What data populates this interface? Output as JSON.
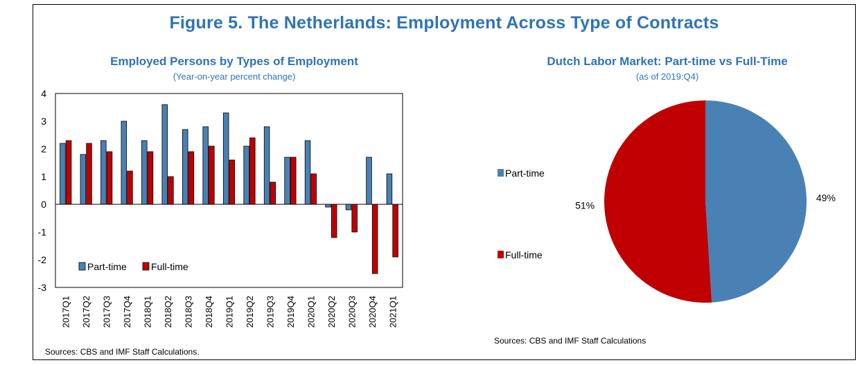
{
  "figure_title": "Figure 5. The Netherlands: Employment Across Type of Contracts",
  "left_panel": {
    "title": "Employed Persons by Types of Employment",
    "subtitle": "(Year-on-year percent change)",
    "source": "Sources: CBS and IMF Staff Calculations."
  },
  "right_panel": {
    "title": "Dutch Labor Market: Part-time vs Full-Time",
    "subtitle": "(as of 2019:Q4)",
    "source": "Sources: CBS and IMF Staff Calculations"
  },
  "colors": {
    "part_time": "#4a81b4",
    "full_time": "#c00000",
    "title": "#2e74b5"
  },
  "chart_data": [
    {
      "type": "bar",
      "title": "Employed Persons by Types of Employment",
      "subtitle": "(Year-on-year percent change)",
      "categories": [
        "2017Q1",
        "2017Q2",
        "2017Q3",
        "2017Q4",
        "2018Q1",
        "2018Q2",
        "2018Q3",
        "2018Q4",
        "2019Q1",
        "2019Q2",
        "2019Q3",
        "2019Q4",
        "2020Q1",
        "2020Q2",
        "2020Q3",
        "2020Q4",
        "2021Q1"
      ],
      "series": [
        {
          "name": "Part-time",
          "values": [
            2.2,
            1.8,
            2.3,
            3.0,
            2.3,
            3.6,
            2.7,
            2.8,
            3.3,
            2.1,
            2.8,
            1.7,
            2.3,
            -0.1,
            -0.2,
            1.7,
            1.1
          ]
        },
        {
          "name": "Full-time",
          "values": [
            2.3,
            2.2,
            1.9,
            1.2,
            1.9,
            1.0,
            1.9,
            2.1,
            1.6,
            2.4,
            0.8,
            1.7,
            1.1,
            -1.2,
            -1.0,
            -2.5,
            -1.9
          ]
        }
      ],
      "ylim": [
        -3,
        4
      ],
      "yticks": [
        -3,
        -2,
        -1,
        0,
        1,
        2,
        3,
        4
      ],
      "legend_position": "bottom-left"
    },
    {
      "type": "pie",
      "title": "Dutch Labor Market: Part-time vs Full-Time",
      "subtitle": "(as of 2019:Q4)",
      "labels": [
        "Part-time",
        "Full-time"
      ],
      "values": [
        49,
        51
      ],
      "data_labels": [
        "49%",
        "51%"
      ],
      "legend_position": "left"
    }
  ]
}
